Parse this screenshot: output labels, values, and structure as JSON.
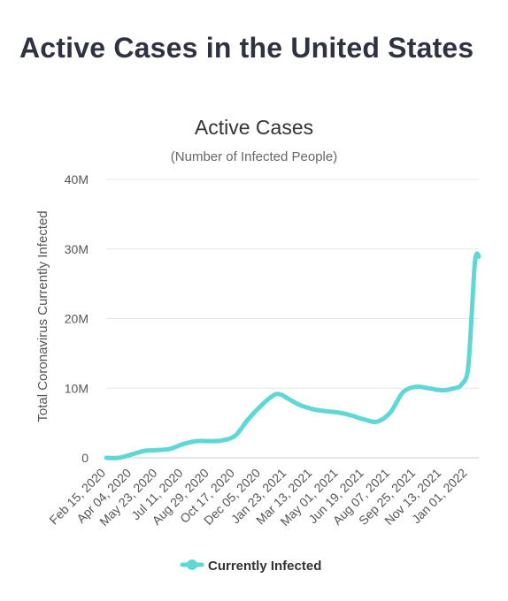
{
  "page": {
    "heading": "Active Cases in the United States"
  },
  "chart_data": {
    "type": "line",
    "title": "Active Cases",
    "subtitle": "(Number of Infected People)",
    "xlabel": "",
    "ylabel": "Total Coronavirus Currently Infected",
    "ylim": [
      0,
      40000000
    ],
    "yticks": [
      {
        "value": 0,
        "label": "0"
      },
      {
        "value": 10000000,
        "label": "10M"
      },
      {
        "value": 20000000,
        "label": "20M"
      },
      {
        "value": 30000000,
        "label": "30M"
      },
      {
        "value": 40000000,
        "label": "40M"
      }
    ],
    "xticks": [
      "Feb 15, 2020",
      "Apr 04, 2020",
      "May 23, 2020",
      "Jul 11, 2020",
      "Aug 29, 2020",
      "Oct 17, 2020",
      "Dec 05, 2020",
      "Jan 23, 2021",
      "Mar 13, 2021",
      "May 01, 2021",
      "Jun 19, 2021",
      "Aug 07, 2021",
      "Sep 25, 2021",
      "Nov 13, 2021",
      "Jan 01, 2022"
    ],
    "grid": true,
    "legend": "bottom",
    "colors": {
      "series": "#5fd7d5",
      "grid": "#e6e6e6"
    },
    "series": [
      {
        "name": "Currently Infected",
        "x": [
          "Feb 15, 2020",
          "Mar 10, 2020",
          "Apr 04, 2020",
          "Apr 28, 2020",
          "May 23, 2020",
          "Jun 16, 2020",
          "Jul 11, 2020",
          "Aug 04, 2020",
          "Aug 29, 2020",
          "Sep 22, 2020",
          "Oct 17, 2020",
          "Nov 10, 2020",
          "Dec 05, 2020",
          "Dec 29, 2020",
          "Jan 11, 2021",
          "Jan 23, 2021",
          "Feb 16, 2021",
          "Mar 13, 2021",
          "Apr 06, 2021",
          "May 01, 2021",
          "May 25, 2021",
          "Jun 19, 2021",
          "Jul 13, 2021",
          "Aug 07, 2021",
          "Aug 31, 2021",
          "Sep 25, 2021",
          "Oct 19, 2021",
          "Nov 13, 2021",
          "Dec 07, 2021",
          "Dec 20, 2021",
          "Jan 01, 2022",
          "Jan 08, 2022",
          "Jan 14, 2022",
          "Jan 18, 2022",
          "Jan 22, 2022"
        ],
        "values": [
          0,
          0,
          500000,
          1000000,
          1100000,
          1300000,
          2000000,
          2400000,
          2400000,
          2500000,
          3200000,
          5500000,
          7500000,
          9000000,
          9100000,
          8600000,
          7600000,
          7000000,
          6700000,
          6500000,
          6100000,
          5500000,
          5200000,
          6500000,
          9400000,
          10200000,
          10000000,
          9700000,
          10000000,
          10500000,
          12500000,
          20000000,
          27500000,
          29300000,
          28900000
        ]
      }
    ]
  }
}
